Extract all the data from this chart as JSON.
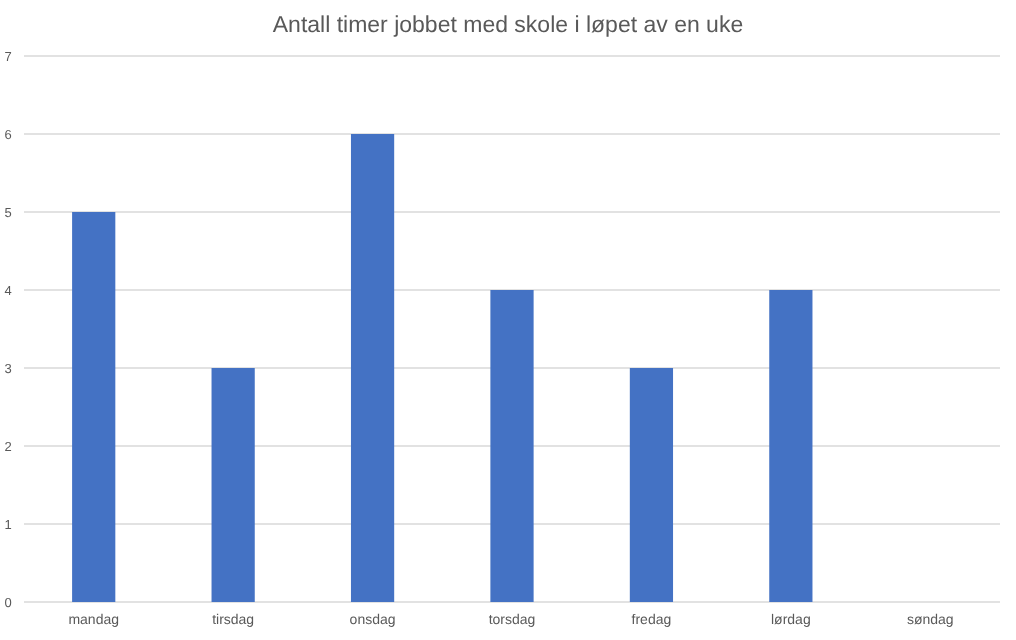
{
  "chart_data": {
    "type": "bar",
    "title": "Antall timer jobbet med skole i løpet av en uke",
    "categories": [
      "mandag",
      "tirsdag",
      "onsdag",
      "torsdag",
      "fredag",
      "lørdag",
      "søndag"
    ],
    "values": [
      5,
      3,
      6,
      4,
      3,
      4,
      0
    ],
    "color": "#4472c4",
    "ylim": [
      0,
      7
    ],
    "yticks": [
      0,
      1,
      2,
      3,
      4,
      5,
      6,
      7
    ],
    "grid": "y"
  }
}
